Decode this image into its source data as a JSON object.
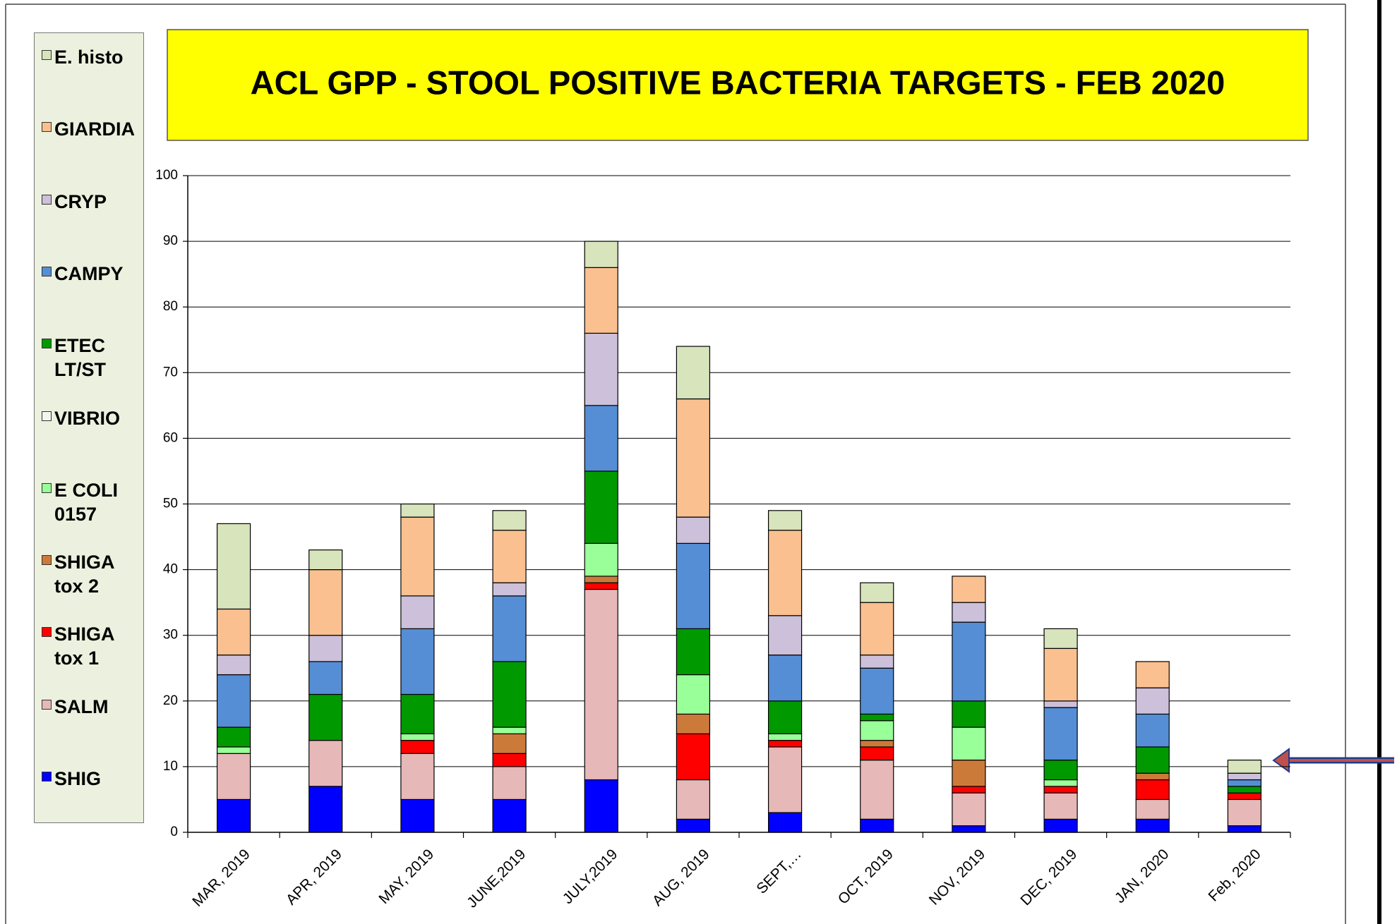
{
  "chart_data": {
    "type": "stacked-bar",
    "title": "ACL GPP - STOOL POSITIVE BACTERIA TARGETS - FEB 2020",
    "categories": [
      "MAR, 2019",
      "APR, 2019",
      "MAY, 2019",
      "JUNE,2019",
      "JULY,2019",
      "AUG, 2019",
      "SEPT,…",
      "OCT, 2019",
      "NOV, 2019",
      "DEC, 2019",
      "JAN, 2020",
      "Feb, 2020"
    ],
    "series": [
      {
        "name": "SHIG",
        "color": "#0000ff",
        "values": [
          5,
          7,
          5,
          5,
          8,
          2,
          3,
          2,
          1,
          2,
          2,
          1
        ]
      },
      {
        "name": "SALM",
        "color": "#e6b8b7",
        "values": [
          7,
          7,
          7,
          5,
          29,
          6,
          10,
          9,
          5,
          4,
          3,
          4
        ]
      },
      {
        "name": "SHIGA tox 1",
        "color": "#ff0000",
        "values": [
          0,
          0,
          2,
          2,
          1,
          7,
          1,
          2,
          1,
          1,
          3,
          1
        ]
      },
      {
        "name": "SHIGA tox 2",
        "color": "#cc7a3a",
        "values": [
          0,
          0,
          0,
          3,
          1,
          3,
          0,
          1,
          4,
          0,
          1,
          0
        ]
      },
      {
        "name": "E COLI 0157",
        "color": "#99ff99",
        "values": [
          1,
          0,
          1,
          1,
          5,
          6,
          1,
          3,
          5,
          1,
          0,
          0
        ]
      },
      {
        "name": "VIBRIO",
        "color": "#f4f4ee",
        "values": [
          0,
          0,
          0,
          0,
          0,
          0,
          0,
          0,
          0,
          0,
          0,
          0
        ]
      },
      {
        "name": "ETEC LT/ST",
        "color": "#009900",
        "values": [
          3,
          7,
          6,
          10,
          11,
          7,
          5,
          1,
          4,
          3,
          4,
          1
        ]
      },
      {
        "name": "CAMPY",
        "color": "#558ed5",
        "values": [
          8,
          5,
          10,
          10,
          10,
          13,
          7,
          7,
          12,
          8,
          5,
          1
        ]
      },
      {
        "name": "CRYP",
        "color": "#ccc0da",
        "values": [
          3,
          4,
          5,
          2,
          11,
          4,
          6,
          2,
          3,
          1,
          4,
          1
        ]
      },
      {
        "name": "GIARDIA",
        "color": "#fac090",
        "values": [
          7,
          10,
          12,
          8,
          10,
          18,
          13,
          8,
          4,
          8,
          4,
          0
        ]
      },
      {
        "name": "E. histo",
        "color": "#d7e4bc",
        "values": [
          13,
          3,
          2,
          3,
          4,
          8,
          3,
          3,
          0,
          3,
          0,
          2
        ]
      }
    ],
    "ylim": [
      0,
      100
    ],
    "yticks": [
      0,
      10,
      20,
      30,
      40,
      50,
      60,
      70,
      80,
      90,
      100
    ],
    "grid": true
  }
}
